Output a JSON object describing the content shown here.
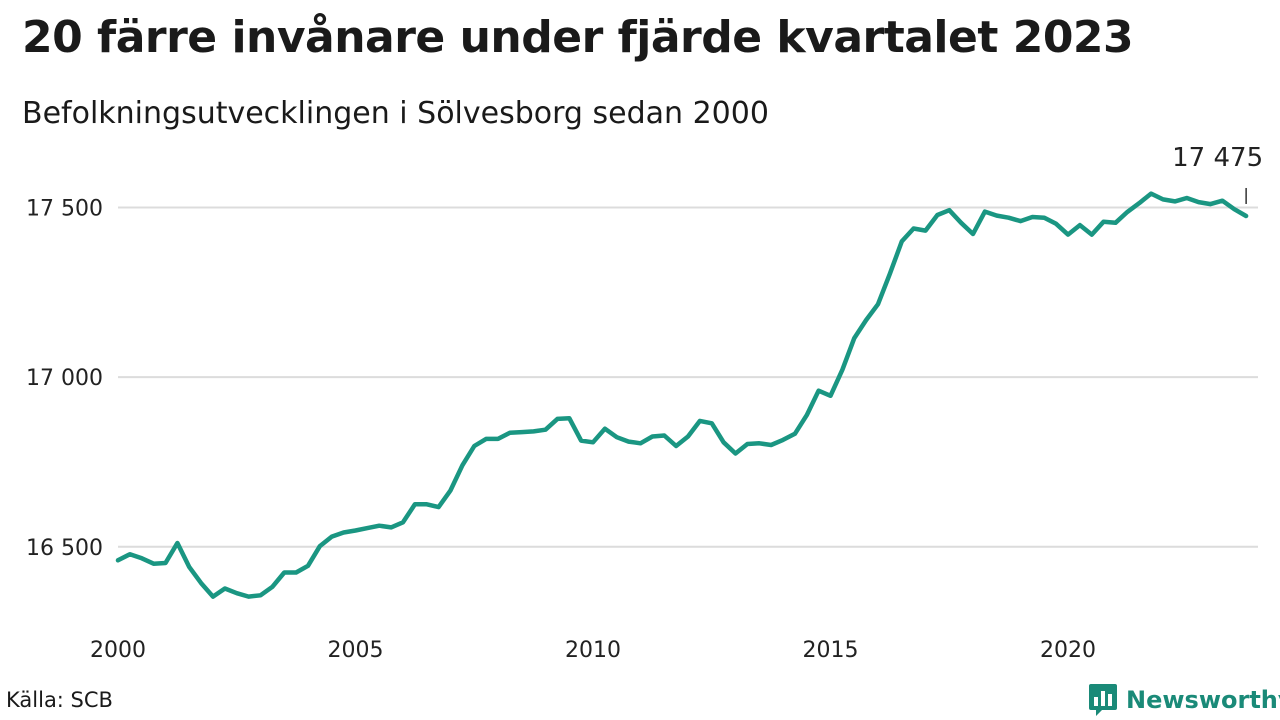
{
  "header": {
    "title": "20 färre invånare under fjärde kvartalet 2023",
    "subtitle": "Befolkningsutvecklingen i Sölvesborg sedan 2000"
  },
  "footer": {
    "source": "Källa: SCB",
    "brand": "Newsworthy",
    "brand_icon": "bar-chart-speech-bubble-icon"
  },
  "colors": {
    "line": "#1a9682",
    "grid": "#dcdcdc",
    "brand": "#1a8a78"
  },
  "chart_data": {
    "type": "line",
    "title": "20 färre invånare under fjärde kvartalet 2023",
    "subtitle": "Befolkningsutvecklingen i Sölvesborg sedan 2000",
    "xlabel": "",
    "ylabel": "",
    "x_unit": "quarter",
    "x": [
      "2000Q1",
      "2000Q2",
      "2000Q3",
      "2000Q4",
      "2001Q1",
      "2001Q2",
      "2001Q3",
      "2001Q4",
      "2002Q1",
      "2002Q2",
      "2002Q3",
      "2002Q4",
      "2003Q1",
      "2003Q2",
      "2003Q3",
      "2003Q4",
      "2004Q1",
      "2004Q2",
      "2004Q3",
      "2004Q4",
      "2005Q1",
      "2005Q2",
      "2005Q3",
      "2005Q4",
      "2006Q1",
      "2006Q2",
      "2006Q3",
      "2006Q4",
      "2007Q1",
      "2007Q2",
      "2007Q3",
      "2007Q4",
      "2008Q1",
      "2008Q2",
      "2008Q3",
      "2008Q4",
      "2009Q1",
      "2009Q2",
      "2009Q3",
      "2009Q4",
      "2010Q1",
      "2010Q2",
      "2010Q3",
      "2010Q4",
      "2011Q1",
      "2011Q2",
      "2011Q3",
      "2011Q4",
      "2012Q1",
      "2012Q2",
      "2012Q3",
      "2012Q4",
      "2013Q1",
      "2013Q2",
      "2013Q3",
      "2013Q4",
      "2014Q1",
      "2014Q2",
      "2014Q3",
      "2014Q4",
      "2015Q1",
      "2015Q2",
      "2015Q3",
      "2015Q4",
      "2016Q1",
      "2016Q2",
      "2016Q3",
      "2016Q4",
      "2017Q1",
      "2017Q2",
      "2017Q3",
      "2017Q4",
      "2018Q1",
      "2018Q2",
      "2018Q3",
      "2018Q4",
      "2019Q1",
      "2019Q2",
      "2019Q3",
      "2019Q4",
      "2020Q1",
      "2020Q2",
      "2020Q3",
      "2020Q4",
      "2021Q1",
      "2021Q2",
      "2021Q3",
      "2021Q4",
      "2022Q1",
      "2022Q2",
      "2022Q3",
      "2022Q4",
      "2023Q1",
      "2023Q2",
      "2023Q3",
      "2023Q4"
    ],
    "series": [
      {
        "values": [
          16460,
          16478,
          16466,
          16450,
          16452,
          16511,
          16440,
          16393,
          16353,
          16377,
          16363,
          16353,
          16357,
          16382,
          16424,
          16424,
          16444,
          16502,
          16530,
          16542,
          16548,
          16555,
          16562,
          16557,
          16572,
          16625,
          16625,
          16617,
          16666,
          16740,
          16797,
          16818,
          16818,
          16836,
          16838,
          16840,
          16845,
          16877,
          16879,
          16813,
          16808,
          16848,
          16823,
          16810,
          16805,
          16825,
          16828,
          16797,
          16825,
          16871,
          16864,
          16808,
          16775,
          16803,
          16805,
          16800,
          16815,
          16833,
          16888,
          16960,
          16945,
          17022,
          17115,
          17168,
          17215,
          17305,
          17400,
          17438,
          17432,
          17478,
          17492,
          17455,
          17422,
          17488,
          17476,
          17470,
          17460,
          17472,
          17470,
          17452,
          17420,
          17448,
          17420,
          17458,
          17455,
          17487,
          17513,
          17541,
          17524,
          17518,
          17528,
          17516,
          17510,
          17520,
          17495,
          17475
        ]
      }
    ],
    "xticks": [
      "2000",
      "2005",
      "2010",
      "2015",
      "2020"
    ],
    "yticks": [
      16500,
      17000,
      17500
    ],
    "ytick_labels": [
      "16 500",
      "17 000",
      "17 500"
    ],
    "ylim": [
      16290,
      17640
    ],
    "xlim": [
      2000,
      2024
    ],
    "grid": "horizontal",
    "last_value_label": "17 475"
  }
}
